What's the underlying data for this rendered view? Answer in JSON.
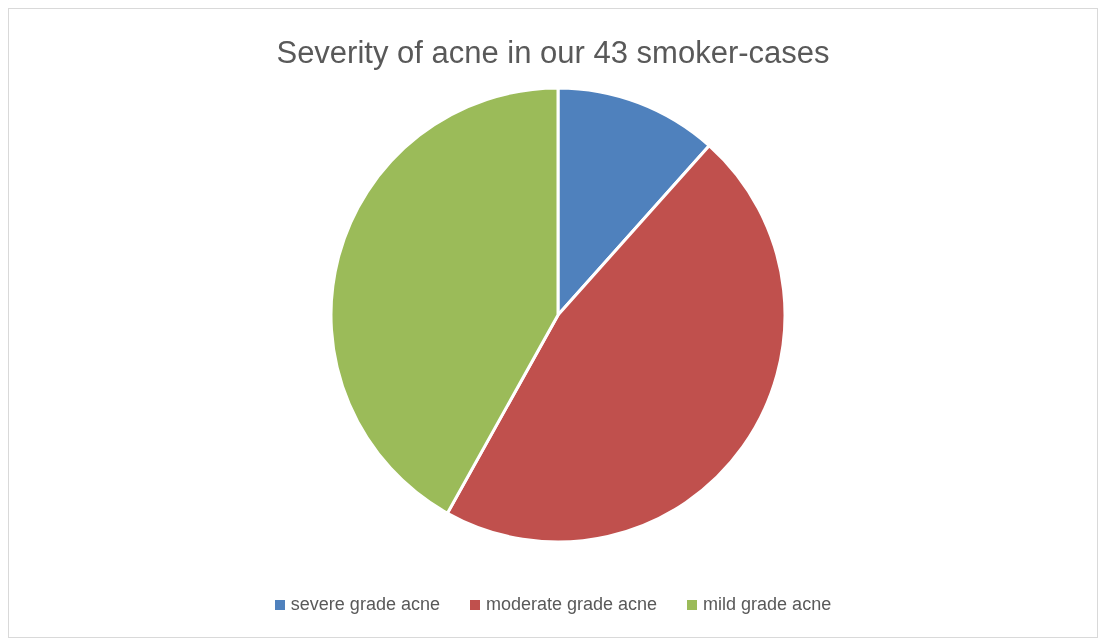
{
  "chart_data": {
    "type": "pie",
    "title": "Severity of acne in our 43 smoker-cases",
    "categories": [
      "severe grade acne",
      "moderate grade acne",
      "mild grade acne"
    ],
    "values": [
      11.6,
      46.5,
      41.9
    ],
    "colors": [
      "#4f81bd",
      "#c0504d",
      "#9bbb59"
    ],
    "legend": "bottom"
  }
}
